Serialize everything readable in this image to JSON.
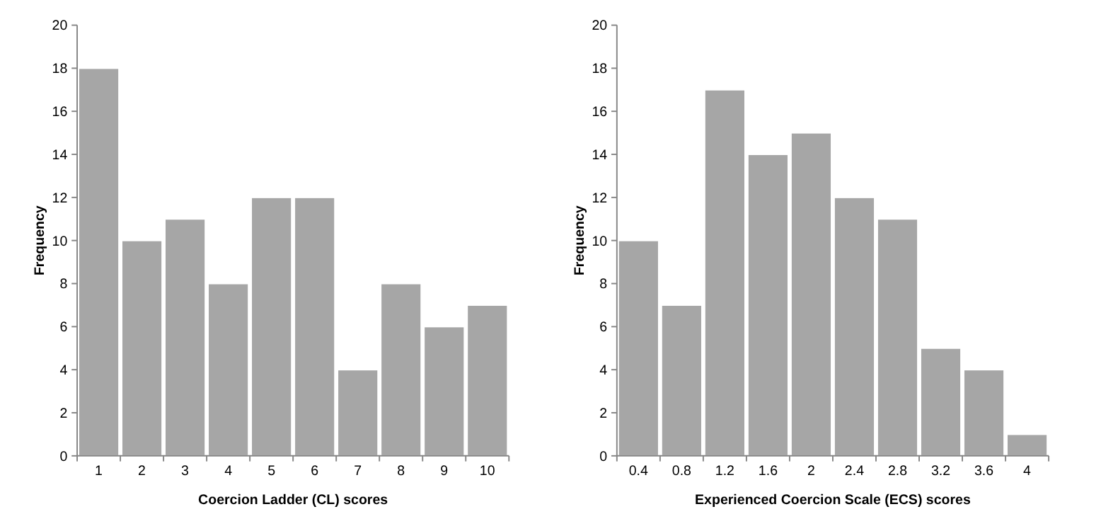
{
  "chart_data": [
    {
      "type": "bar",
      "xlabel": "Coercion Ladder (CL) scores",
      "ylabel": "Frequency",
      "categories": [
        "1",
        "2",
        "3",
        "4",
        "5",
        "6",
        "7",
        "8",
        "9",
        "10"
      ],
      "values": [
        18,
        10,
        11,
        8,
        12,
        12,
        4,
        8,
        6,
        7
      ],
      "color": "#a6a6a6",
      "ylim": [
        0,
        20
      ],
      "yticks": [
        0,
        2,
        4,
        6,
        8,
        10,
        12,
        14,
        16,
        18,
        20
      ]
    },
    {
      "type": "bar",
      "xlabel": "Experienced Coercion Scale (ECS) scores",
      "ylabel": "Frequency",
      "categories": [
        "0.4",
        "0.8",
        "1.2",
        "1.6",
        "2",
        "2.4",
        "2.8",
        "3.2",
        "3.6",
        "4"
      ],
      "values": [
        10,
        7,
        17,
        14,
        15,
        12,
        11,
        5,
        4,
        1
      ],
      "color": "#a6a6a6",
      "ylim": [
        0,
        20
      ],
      "yticks": [
        0,
        2,
        4,
        6,
        8,
        10,
        12,
        14,
        16,
        18,
        20
      ]
    }
  ]
}
